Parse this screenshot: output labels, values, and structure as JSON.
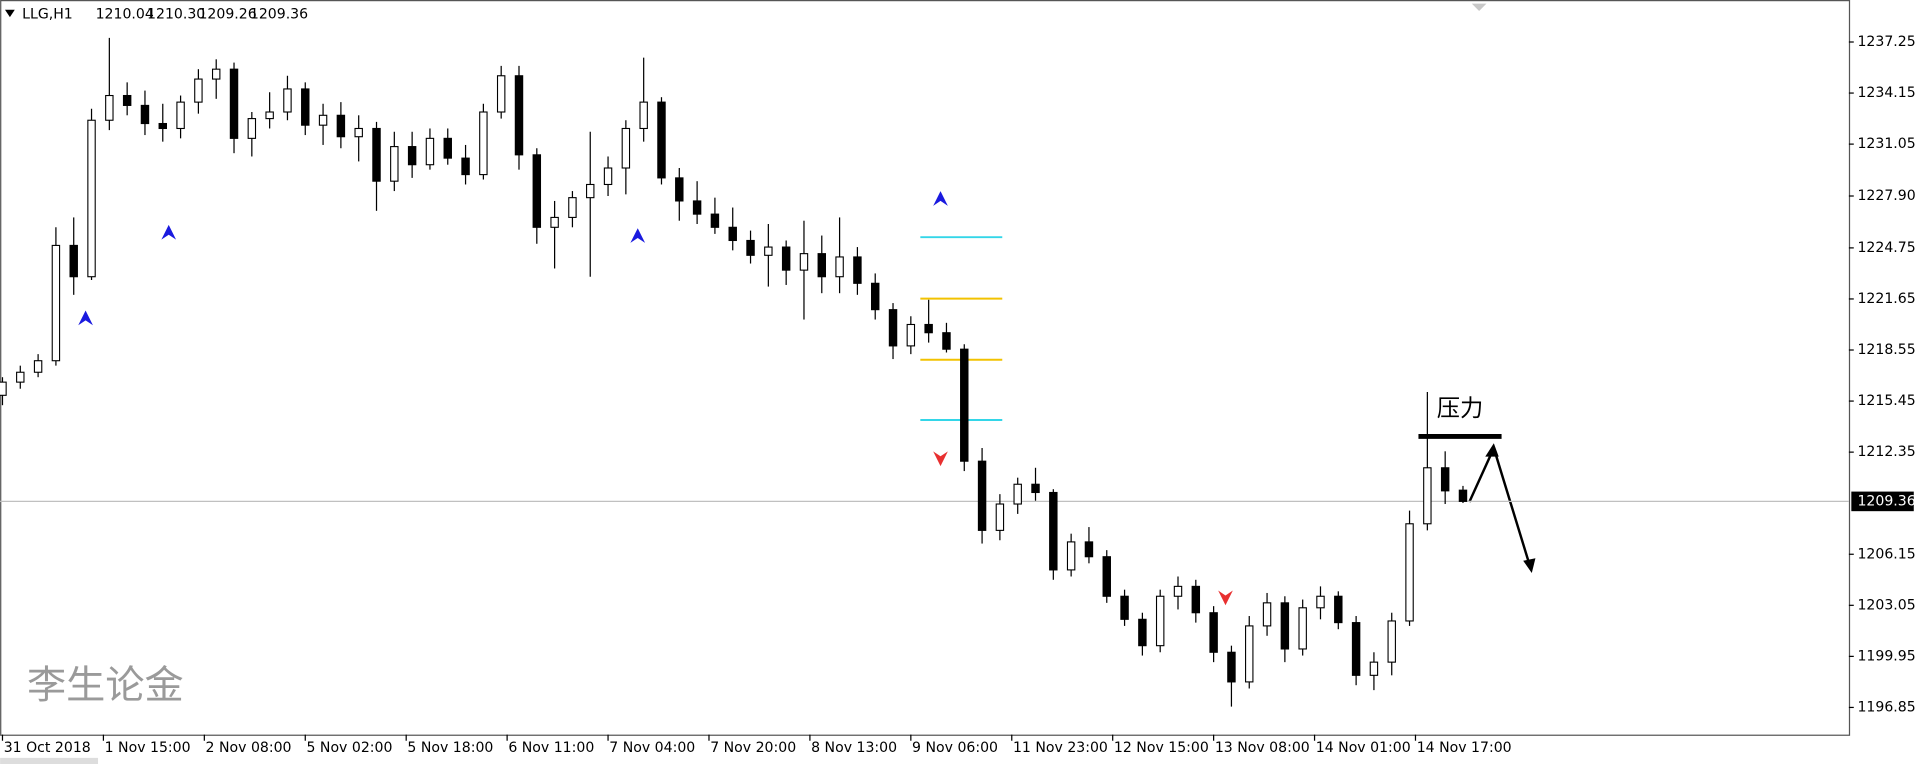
{
  "chart_data": {
    "type": "candlestick",
    "title": "LLG,H1",
    "header_values": [
      "1210.04",
      "1210.30",
      "1209.26",
      "1209.36"
    ],
    "x": [
      0,
      3,
      6,
      9,
      12,
      15,
      18,
      21,
      24,
      27,
      30,
      33,
      36,
      39,
      42,
      45,
      48,
      51,
      54,
      57,
      60,
      63,
      66,
      69,
      72,
      75,
      78,
      81,
      84,
      87,
      90,
      93,
      96,
      99,
      102,
      105,
      108,
      111,
      114,
      117,
      120,
      123,
      126,
      129,
      132,
      135,
      138,
      141,
      144,
      147,
      150,
      153,
      156,
      159,
      162,
      165,
      168,
      171,
      174,
      177,
      180,
      183,
      186,
      189,
      192,
      195,
      198,
      201,
      204,
      207,
      210,
      213,
      216,
      219,
      222,
      225,
      228,
      231,
      234,
      237,
      240,
      243,
      246
    ],
    "ohlc": [
      [
        1215.8,
        1216.9,
        1215.2,
        1216.6
      ],
      [
        1216.6,
        1217.6,
        1216.2,
        1217.2
      ],
      [
        1217.2,
        1218.3,
        1216.9,
        1217.9
      ],
      [
        1217.9,
        1226.0,
        1217.6,
        1224.9
      ],
      [
        1224.9,
        1226.6,
        1221.9,
        1223.0
      ],
      [
        1223.0,
        1233.2,
        1222.8,
        1232.5
      ],
      [
        1232.5,
        1237.5,
        1231.9,
        1234.0
      ],
      [
        1234.0,
        1234.8,
        1232.8,
        1233.4
      ],
      [
        1233.4,
        1234.3,
        1231.6,
        1232.3
      ],
      [
        1232.3,
        1233.5,
        1231.2,
        1232.0
      ],
      [
        1232.0,
        1234.0,
        1231.4,
        1233.6
      ],
      [
        1233.6,
        1235.6,
        1232.9,
        1235.0
      ],
      [
        1235.0,
        1236.2,
        1233.8,
        1235.6
      ],
      [
        1235.6,
        1236.0,
        1230.5,
        1231.4
      ],
      [
        1231.4,
        1233.0,
        1230.3,
        1232.6
      ],
      [
        1232.6,
        1234.2,
        1232.0,
        1233.0
      ],
      [
        1233.0,
        1235.2,
        1232.5,
        1234.4
      ],
      [
        1234.4,
        1234.8,
        1231.6,
        1232.2
      ],
      [
        1232.2,
        1233.5,
        1231.0,
        1232.8
      ],
      [
        1232.8,
        1233.6,
        1230.8,
        1231.5
      ],
      [
        1231.5,
        1232.8,
        1230.0,
        1232.0
      ],
      [
        1232.0,
        1232.4,
        1227.0,
        1228.8
      ],
      [
        1228.8,
        1231.8,
        1228.2,
        1230.9
      ],
      [
        1230.9,
        1231.8,
        1229.0,
        1229.8
      ],
      [
        1229.8,
        1232.0,
        1229.5,
        1231.4
      ],
      [
        1231.4,
        1232.0,
        1229.8,
        1230.2
      ],
      [
        1230.2,
        1231.0,
        1228.6,
        1229.2
      ],
      [
        1229.2,
        1233.5,
        1228.9,
        1233.0
      ],
      [
        1233.0,
        1235.8,
        1232.6,
        1235.2
      ],
      [
        1235.2,
        1235.8,
        1229.5,
        1230.4
      ],
      [
        1230.4,
        1230.8,
        1225.0,
        1226.0
      ],
      [
        1226.0,
        1227.6,
        1223.5,
        1226.6
      ],
      [
        1226.6,
        1228.2,
        1226.0,
        1227.8
      ],
      [
        1227.8,
        1231.8,
        1223.0,
        1228.6
      ],
      [
        1228.6,
        1230.3,
        1227.9,
        1229.6
      ],
      [
        1229.6,
        1232.5,
        1228.0,
        1232.0
      ],
      [
        1232.0,
        1236.3,
        1231.2,
        1233.6
      ],
      [
        1233.6,
        1233.9,
        1228.6,
        1229.0
      ],
      [
        1229.0,
        1229.6,
        1226.4,
        1227.6
      ],
      [
        1227.6,
        1228.8,
        1226.2,
        1226.8
      ],
      [
        1226.8,
        1227.8,
        1225.6,
        1226.0
      ],
      [
        1226.0,
        1227.2,
        1224.6,
        1225.2
      ],
      [
        1225.2,
        1225.8,
        1223.8,
        1224.3
      ],
      [
        1224.3,
        1226.2,
        1222.4,
        1224.8
      ],
      [
        1224.8,
        1225.2,
        1222.5,
        1223.4
      ],
      [
        1223.4,
        1226.4,
        1220.4,
        1224.4
      ],
      [
        1224.4,
        1225.5,
        1222.0,
        1223.0
      ],
      [
        1223.0,
        1226.6,
        1222.0,
        1224.2
      ],
      [
        1224.2,
        1224.8,
        1221.9,
        1222.6
      ],
      [
        1222.6,
        1223.2,
        1220.4,
        1221.0
      ],
      [
        1221.0,
        1221.4,
        1218.0,
        1218.8
      ],
      [
        1218.8,
        1220.6,
        1218.3,
        1220.1
      ],
      [
        1220.1,
        1221.6,
        1219.0,
        1219.6
      ],
      [
        1219.6,
        1220.2,
        1218.4,
        1218.6
      ],
      [
        1218.6,
        1218.9,
        1211.2,
        1211.8
      ],
      [
        1211.8,
        1212.6,
        1206.8,
        1207.6
      ],
      [
        1207.6,
        1209.8,
        1207.0,
        1209.2
      ],
      [
        1209.2,
        1210.8,
        1208.6,
        1210.4
      ],
      [
        1210.4,
        1211.4,
        1209.4,
        1209.9
      ],
      [
        1209.9,
        1210.1,
        1204.6,
        1205.2
      ],
      [
        1205.2,
        1207.4,
        1204.8,
        1206.9
      ],
      [
        1206.9,
        1207.8,
        1205.6,
        1206.0
      ],
      [
        1206.0,
        1206.4,
        1203.2,
        1203.6
      ],
      [
        1203.6,
        1204.0,
        1201.8,
        1202.2
      ],
      [
        1202.2,
        1202.6,
        1200.0,
        1200.6
      ],
      [
        1200.6,
        1204.0,
        1200.2,
        1203.6
      ],
      [
        1203.6,
        1204.8,
        1202.8,
        1204.2
      ],
      [
        1204.2,
        1204.6,
        1202.0,
        1202.6
      ],
      [
        1202.6,
        1203.0,
        1199.6,
        1200.2
      ],
      [
        1200.2,
        1200.6,
        1196.9,
        1198.4
      ],
      [
        1198.4,
        1202.4,
        1198.0,
        1201.8
      ],
      [
        1201.8,
        1203.8,
        1201.2,
        1203.2
      ],
      [
        1203.2,
        1203.6,
        1199.6,
        1200.4
      ],
      [
        1200.4,
        1203.4,
        1200.0,
        1202.9
      ],
      [
        1202.9,
        1204.2,
        1202.2,
        1203.6
      ],
      [
        1203.6,
        1203.9,
        1201.6,
        1202.0
      ],
      [
        1202.0,
        1202.4,
        1198.2,
        1198.8
      ],
      [
        1198.8,
        1200.2,
        1197.9,
        1199.6
      ],
      [
        1199.6,
        1202.6,
        1198.8,
        1202.1
      ],
      [
        1202.1,
        1208.8,
        1201.8,
        1208.0
      ],
      [
        1208.0,
        1216.0,
        1207.6,
        1211.4
      ],
      [
        1211.4,
        1212.4,
        1209.2,
        1210.0
      ],
      [
        1210.04,
        1210.3,
        1209.26,
        1209.36
      ]
    ],
    "xlim": [
      -0.4,
      311
    ],
    "ylim": [
      1195.2,
      1239.8
    ],
    "yticks": [
      1237.25,
      1234.15,
      1231.05,
      {
        "value": 1227.9,
        "label": "1227.90"
      },
      1224.75,
      1221.65,
      1218.55,
      1215.45,
      1212.35,
      1206.15,
      1203.05,
      1199.95,
      1196.85
    ],
    "xticks": [
      {
        "value": 0,
        "label": "31 Oct 2018"
      },
      {
        "value": 17,
        "label": "1 Nov 15:00"
      },
      {
        "value": 34,
        "label": "2 Nov 08:00"
      },
      {
        "value": 51,
        "label": "5 Nov 02:00"
      },
      {
        "value": 68,
        "label": "5 Nov 18:00"
      },
      {
        "value": 85,
        "label": "6 Nov 11:00"
      },
      {
        "value": 102,
        "label": "7 Nov 04:00"
      },
      {
        "value": 119,
        "label": "7 Nov 20:00"
      },
      {
        "value": 136,
        "label": "8 Nov 13:00"
      },
      {
        "value": 153,
        "label": "9 Nov 06:00"
      },
      {
        "value": 170,
        "label": "11 Nov 23:00"
      },
      {
        "value": 187,
        "label": "12 Nov 15:00"
      },
      {
        "value": 204,
        "label": "13 Nov 08:00"
      },
      {
        "value": 221,
        "label": "14 Nov 01:00"
      },
      {
        "value": 238,
        "label": "14 Nov 17:00"
      }
    ],
    "levels": [
      {
        "value": 1225.4,
        "color": "#33d6e8"
      },
      {
        "value": 1221.67,
        "color": "#f2c200"
      },
      {
        "value": 1217.96,
        "color": "#f2c200"
      },
      {
        "value": 1214.3,
        "color": "#33d6e8"
      }
    ],
    "level_x_range": [
      154.6,
      168.4
    ],
    "signals": [
      {
        "x": 14,
        "y": 1220.5,
        "direction": "up",
        "color": "#1a1adf"
      },
      {
        "x": 28,
        "y": 1225.7,
        "direction": "up",
        "color": "#1a1adf"
      },
      {
        "x": 107,
        "y": 1225.5,
        "direction": "up",
        "color": "#1a1adf"
      },
      {
        "x": 158,
        "y": 1227.75,
        "direction": "up",
        "color": "#1a1adf"
      },
      {
        "x": 158,
        "y": 1211.95,
        "direction": "down",
        "color": "#e83030"
      },
      {
        "x": 206,
        "y": 1203.5,
        "direction": "down",
        "color": "#e83030"
      }
    ],
    "annotation": {
      "text": "压力",
      "level": 1213.3,
      "x_range": [
        238.5,
        252.5
      ]
    },
    "watermark": "李生论金"
  }
}
